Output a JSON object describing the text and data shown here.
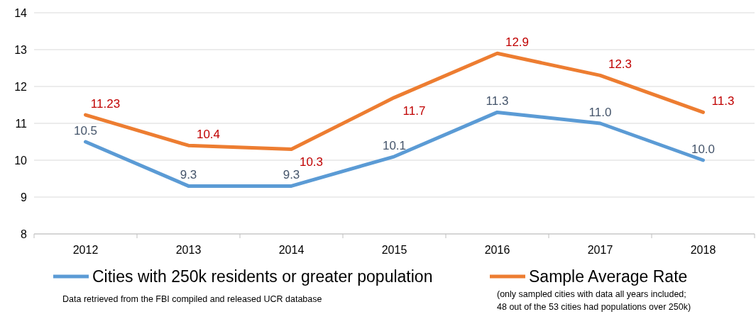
{
  "chart_data": {
    "type": "line",
    "categories": [
      "2012",
      "2013",
      "2014",
      "2015",
      "2016",
      "2017",
      "2018"
    ],
    "series": [
      {
        "name": "Cities with 250k residents or greater population",
        "color": "#5b9bd5",
        "values": [
          10.5,
          9.3,
          9.3,
          10.1,
          11.3,
          11.0,
          10.0
        ],
        "value_labels": [
          "10.5",
          "9.3",
          "9.3",
          "10.1",
          "11.3",
          "11.0",
          "10.0"
        ]
      },
      {
        "name": "Sample Average Rate",
        "color": "#ed7d31",
        "values": [
          11.23,
          10.4,
          10.3,
          11.7,
          12.9,
          12.3,
          11.3
        ],
        "value_labels": [
          "11.23",
          "10.4",
          "10.3",
          "11.7",
          "12.9",
          "12.3",
          "11.3"
        ]
      }
    ],
    "ylim": [
      8,
      14
    ],
    "yticks": [
      8,
      9,
      10,
      11,
      12,
      13,
      14
    ],
    "grid": "y",
    "legend": "bottom",
    "marker": "none",
    "line_style": "solid",
    "annotations": [
      "Data retrieved from the FBI compiled and released UCR database",
      "(only sampled cities with data all years included;\n48 out of the 53 cities had populations over 250k)"
    ]
  }
}
